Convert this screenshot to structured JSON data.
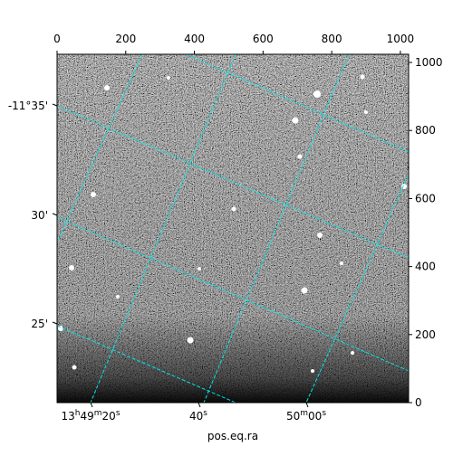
{
  "chart_data": {
    "type": "image",
    "xlabel": "pos.eq.ra",
    "xlim": [
      0,
      1024
    ],
    "xticks": [
      0,
      200,
      400,
      600,
      800,
      1000
    ],
    "ylim": [
      0,
      1024
    ],
    "yticks": [
      0,
      200,
      400,
      600,
      800,
      1000
    ],
    "world_xticks": [
      "13h49m20s",
      "40s",
      "50m00s"
    ],
    "world_yticks": [
      "-11°35'",
      "30'",
      "25'"
    ],
    "grid_color": "#00e5e5"
  }
}
